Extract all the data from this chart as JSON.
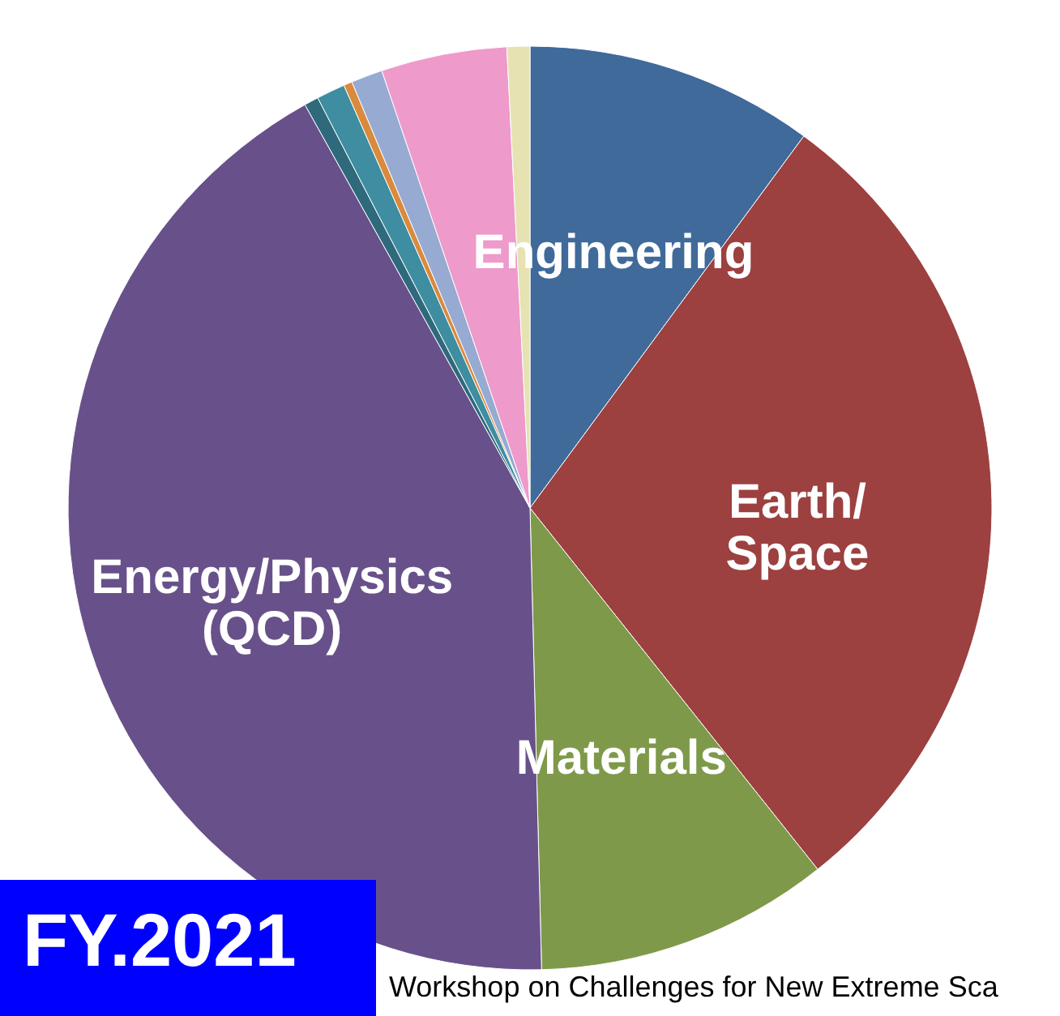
{
  "chart_data": {
    "type": "pie",
    "categories": [
      "Engineering",
      "Earth/ Space",
      "Materials",
      "Energy/Physics (QCD)",
      null,
      null,
      null,
      null,
      null,
      null
    ],
    "values": [
      10.1,
      29.2,
      10.3,
      42.3,
      0.5,
      1.0,
      0.3,
      1.1,
      4.4,
      0.8
    ],
    "colors": [
      "#3f6a9a",
      "#9c4040",
      "#7f994a",
      "#68518a",
      "#2e6a7c",
      "#3e8da1",
      "#d98a3d",
      "#96aad2",
      "#ee9acb",
      "#e6e2b2"
    ],
    "annotations": [
      "FY.2021",
      "Workshop on Challenges for New Extreme Sca"
    ]
  }
}
